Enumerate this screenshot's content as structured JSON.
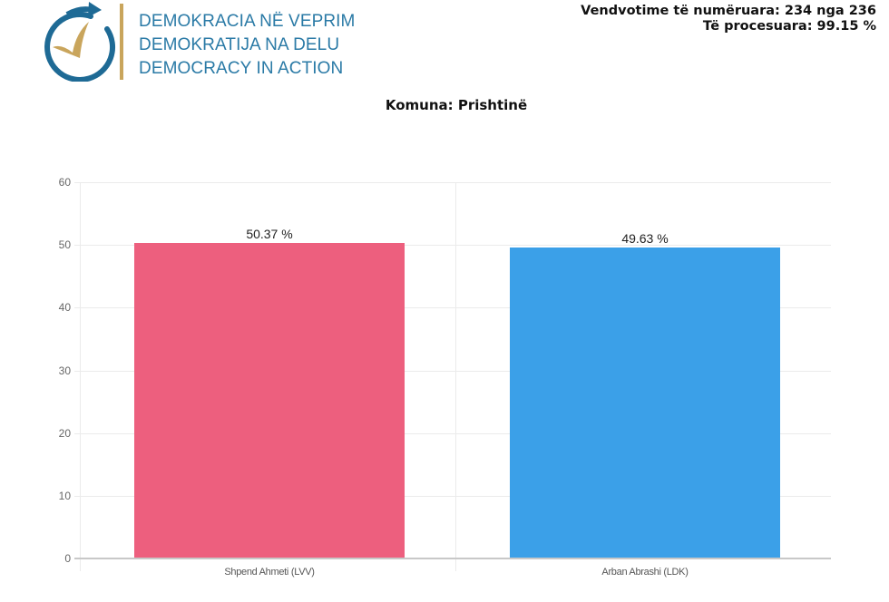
{
  "header": {
    "logo_lines": [
      "DEMOKRACIA NË VEPRIM",
      "DEMOKRATIJA NA DELU",
      "DEMOCRACY IN ACTION"
    ],
    "logo_icon": "circular-arrow-checkmark-icon",
    "stats": {
      "polling_stations": "Vendvotime të numëruara: 234 nga 236",
      "processed": "Të procesuara: 99.15 %"
    }
  },
  "colors": {
    "logo_blue": "#1e6a95",
    "logo_gold": "#c9a55c",
    "logo_text": "#2a7aa6",
    "bar_1": "#ed5f7e",
    "bar_2": "#3ba0e8"
  },
  "chart_data": {
    "type": "bar",
    "title": "Komuna: Prishtinë",
    "categories": [
      "Shpend Ahmeti (LVV)",
      "Arban Abrashi (LDK)"
    ],
    "values": [
      50.37,
      49.63
    ],
    "value_labels": [
      "50.37 %",
      "49.63 %"
    ],
    "colors": [
      "#ed5f7e",
      "#3ba0e8"
    ],
    "xlabel": "",
    "ylabel": "",
    "ylim": [
      0,
      60
    ],
    "yticks": [
      0,
      10,
      20,
      30,
      40,
      50,
      60
    ],
    "grid": true,
    "legend": "none"
  }
}
